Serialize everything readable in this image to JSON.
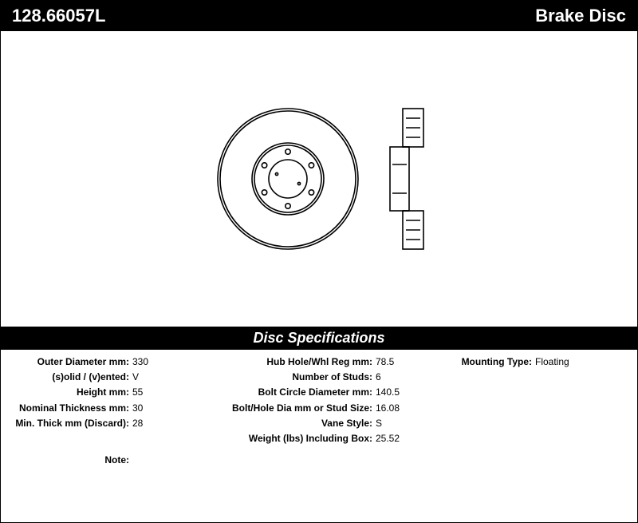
{
  "header": {
    "part_number": "128.66057L",
    "product_type": "Brake Disc"
  },
  "spec_header": "Disc Specifications",
  "column1": [
    {
      "label": "Outer Diameter mm:",
      "value": "330"
    },
    {
      "label": "(s)olid / (v)ented:",
      "value": "V"
    },
    {
      "label": "Height mm:",
      "value": "55"
    },
    {
      "label": "Nominal Thickness mm:",
      "value": "30"
    },
    {
      "label": "Min. Thick mm (Discard):",
      "value": "28"
    }
  ],
  "column2": [
    {
      "label": "Hub Hole/Whl Reg mm:",
      "value": "78.5"
    },
    {
      "label": "Number of Studs:",
      "value": "6"
    },
    {
      "label": "Bolt Circle Diameter mm:",
      "value": "140.5"
    },
    {
      "label": "Bolt/Hole Dia mm or Stud Size:",
      "value": "16.08"
    },
    {
      "label": "Vane Style:",
      "value": "S"
    },
    {
      "label": "Weight (lbs) Including Box:",
      "value": "25.52"
    }
  ],
  "column3": [
    {
      "label": "Mounting Type:",
      "value": "Floating"
    }
  ],
  "note_label": "Note:",
  "note_value": "",
  "diagram": {
    "stroke": "#000000",
    "stroke_width": 1.6,
    "background": "#ffffff",
    "face": {
      "outer_radius": 88,
      "inner_ring_radius": 42,
      "hub_radius": 24,
      "bolt_count": 6,
      "bolt_circle_radius": 34,
      "bolt_radius": 3.2,
      "small_hole_radius": 1.6
    },
    "side": {
      "width": 42,
      "height": 176
    }
  }
}
